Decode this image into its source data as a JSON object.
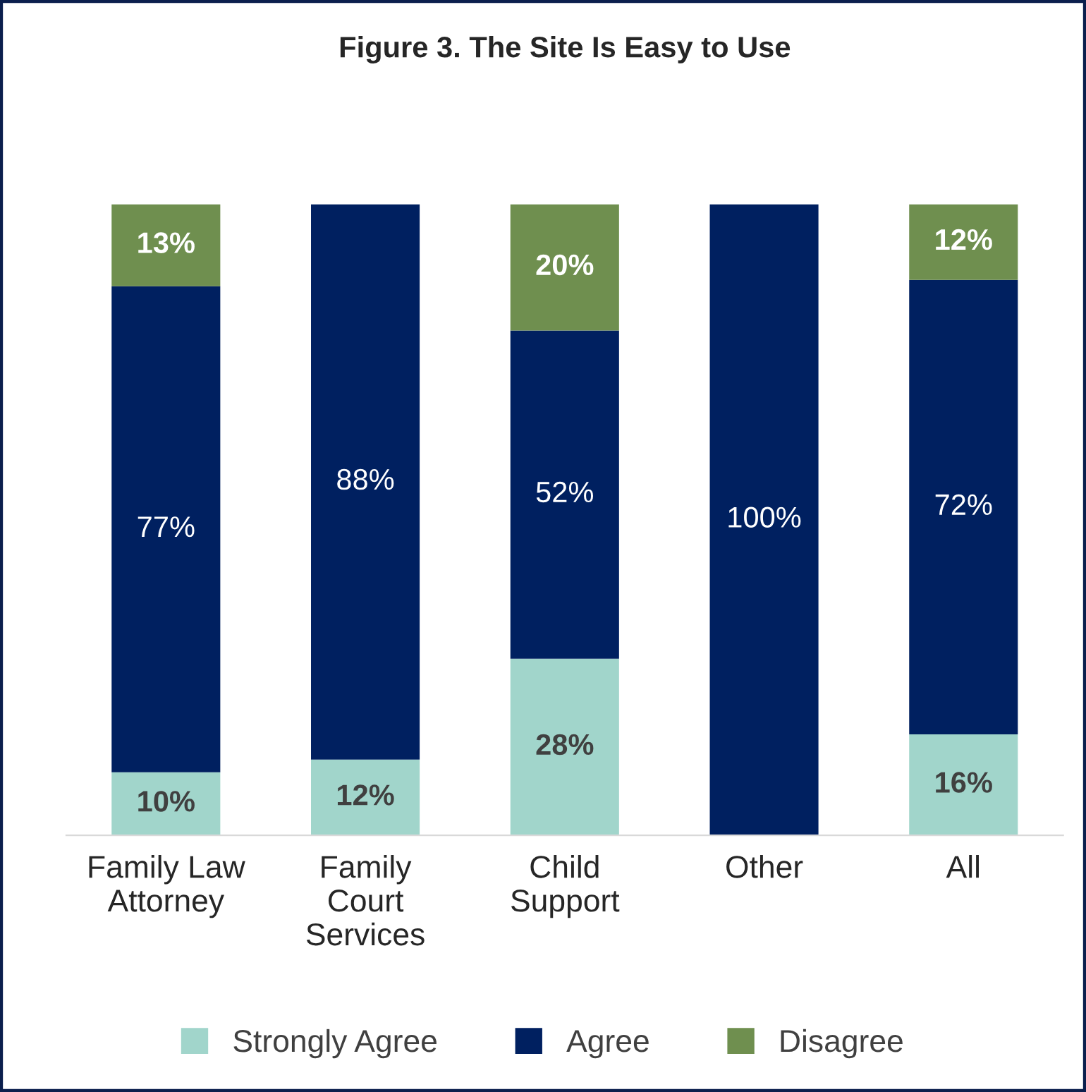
{
  "chart_data": {
    "type": "bar",
    "title": "Figure 3. The Site Is Easy to Use",
    "categories": [
      "Family Law\nAttorney",
      "Family\nCourt\nServices",
      "Child\nSupport",
      "Other",
      "All"
    ],
    "stacked": true,
    "ylim": [
      0,
      100
    ],
    "tick_labels": "x",
    "grid": false,
    "legend": "bottom",
    "series": [
      {
        "name": "Strongly Agree",
        "color": "#a1d5cb",
        "values": [
          10,
          12,
          28,
          0,
          16
        ],
        "value_labels": [
          "10%",
          "12%",
          "28%",
          null,
          "16%"
        ]
      },
      {
        "name": "Agree",
        "color": "#002060",
        "values": [
          77,
          88,
          52,
          100,
          72
        ],
        "value_labels": [
          "77%",
          "88%",
          "52%",
          "100%",
          "72%"
        ]
      },
      {
        "name": "Disagree",
        "color": "#6f8f4f",
        "values": [
          13,
          0,
          20,
          0,
          12
        ],
        "value_labels": [
          "13%",
          null,
          "20%",
          null,
          "12%"
        ]
      }
    ]
  }
}
